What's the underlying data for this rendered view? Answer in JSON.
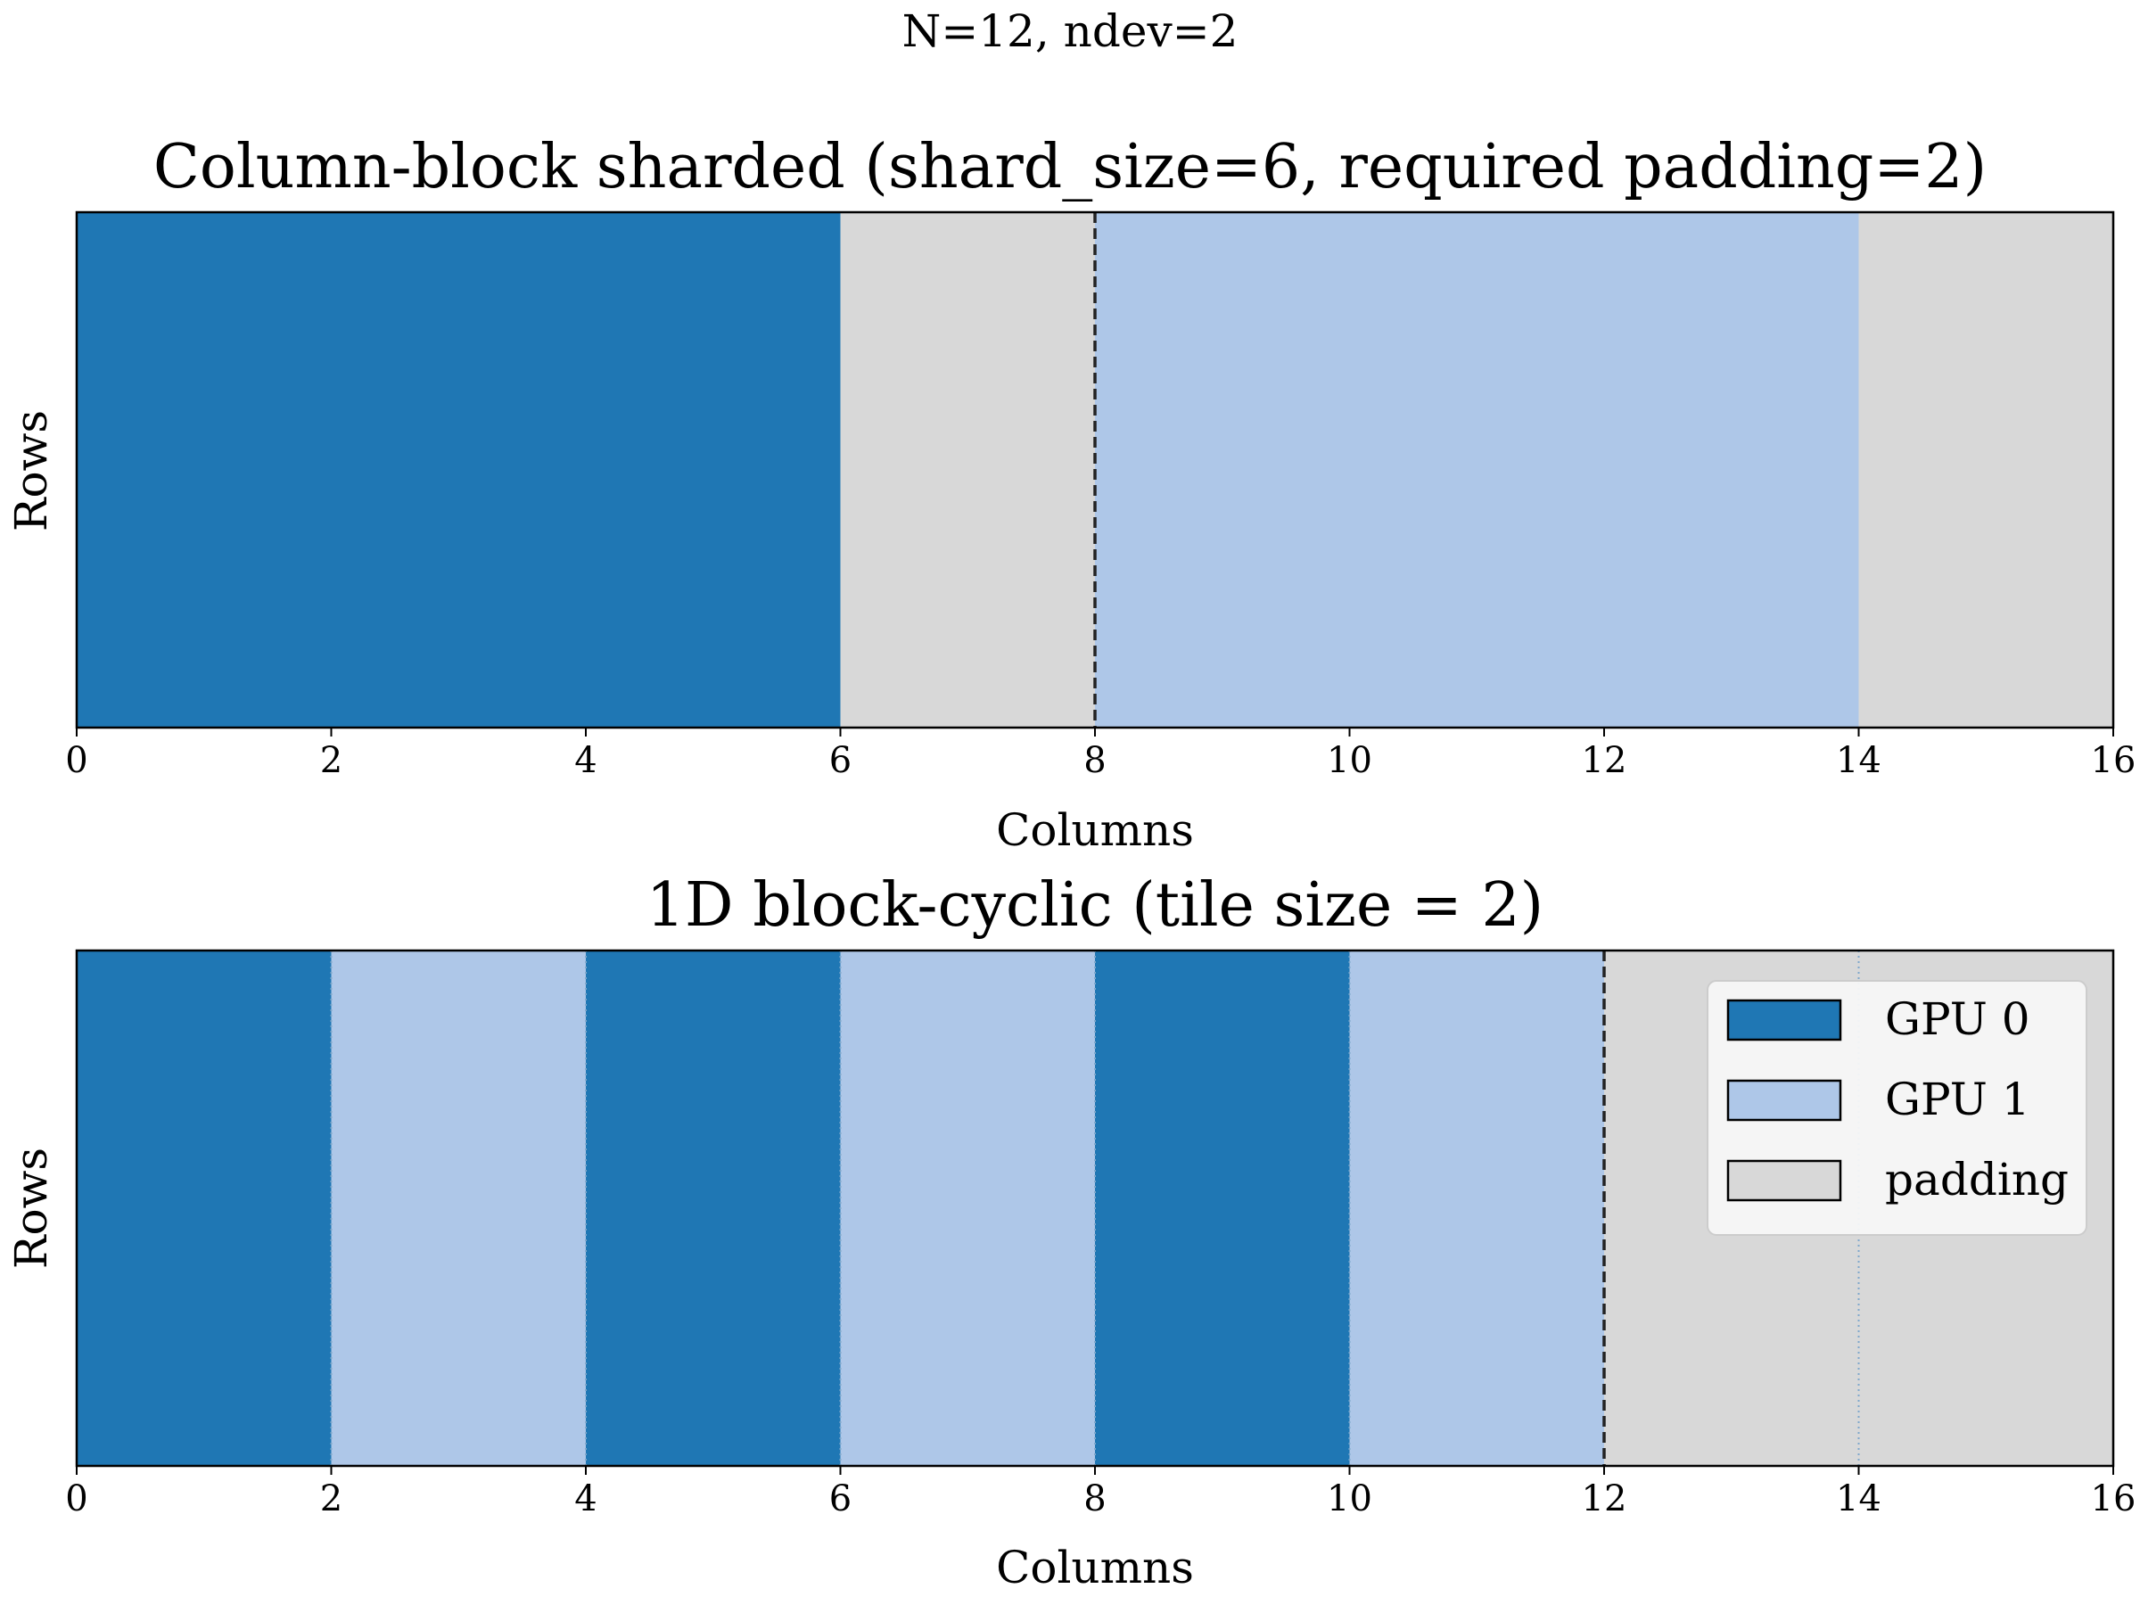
{
  "suptitle": "N=12, ndev=2",
  "colors": {
    "gpu0": "#1f77b4",
    "gpu1": "#aec7e8",
    "padding": "#d8d8d8",
    "boundary_line": "#222222",
    "tile_separator": "#7fa8cc",
    "axes_edge": "#000000"
  },
  "chart_data": [
    {
      "type": "bar",
      "title": "Column-block sharded (shard_size=6, required padding=2)",
      "xlabel": "Columns",
      "ylabel": "Rows",
      "xlim": [
        0,
        16
      ],
      "xticks": [
        0,
        2,
        4,
        6,
        8,
        10,
        12,
        14,
        16
      ],
      "segments": [
        {
          "start": 0,
          "end": 6,
          "owner": "gpu0"
        },
        {
          "start": 6,
          "end": 8,
          "owner": "padding"
        },
        {
          "start": 8,
          "end": 14,
          "owner": "gpu1"
        },
        {
          "start": 14,
          "end": 16,
          "owner": "padding"
        }
      ],
      "dashed_lines": [
        8
      ],
      "dotted_lines": []
    },
    {
      "type": "bar",
      "title": "1D block-cyclic (tile size = 2)",
      "xlabel": "Columns",
      "ylabel": "Rows",
      "xlim": [
        0,
        16
      ],
      "xticks": [
        0,
        2,
        4,
        6,
        8,
        10,
        12,
        14,
        16
      ],
      "segments": [
        {
          "start": 0,
          "end": 2,
          "owner": "gpu0"
        },
        {
          "start": 2,
          "end": 4,
          "owner": "gpu1"
        },
        {
          "start": 4,
          "end": 6,
          "owner": "gpu0"
        },
        {
          "start": 6,
          "end": 8,
          "owner": "gpu1"
        },
        {
          "start": 8,
          "end": 10,
          "owner": "gpu0"
        },
        {
          "start": 10,
          "end": 12,
          "owner": "gpu1"
        },
        {
          "start": 12,
          "end": 16,
          "owner": "padding"
        }
      ],
      "dashed_lines": [
        12
      ],
      "dotted_lines": [
        2,
        4,
        6,
        8,
        10,
        14
      ],
      "legend": {
        "placement": "top-right",
        "entries": [
          {
            "label": "GPU 0",
            "owner": "gpu0"
          },
          {
            "label": "GPU 1",
            "owner": "gpu1"
          },
          {
            "label": "padding",
            "owner": "padding"
          }
        ]
      }
    }
  ]
}
